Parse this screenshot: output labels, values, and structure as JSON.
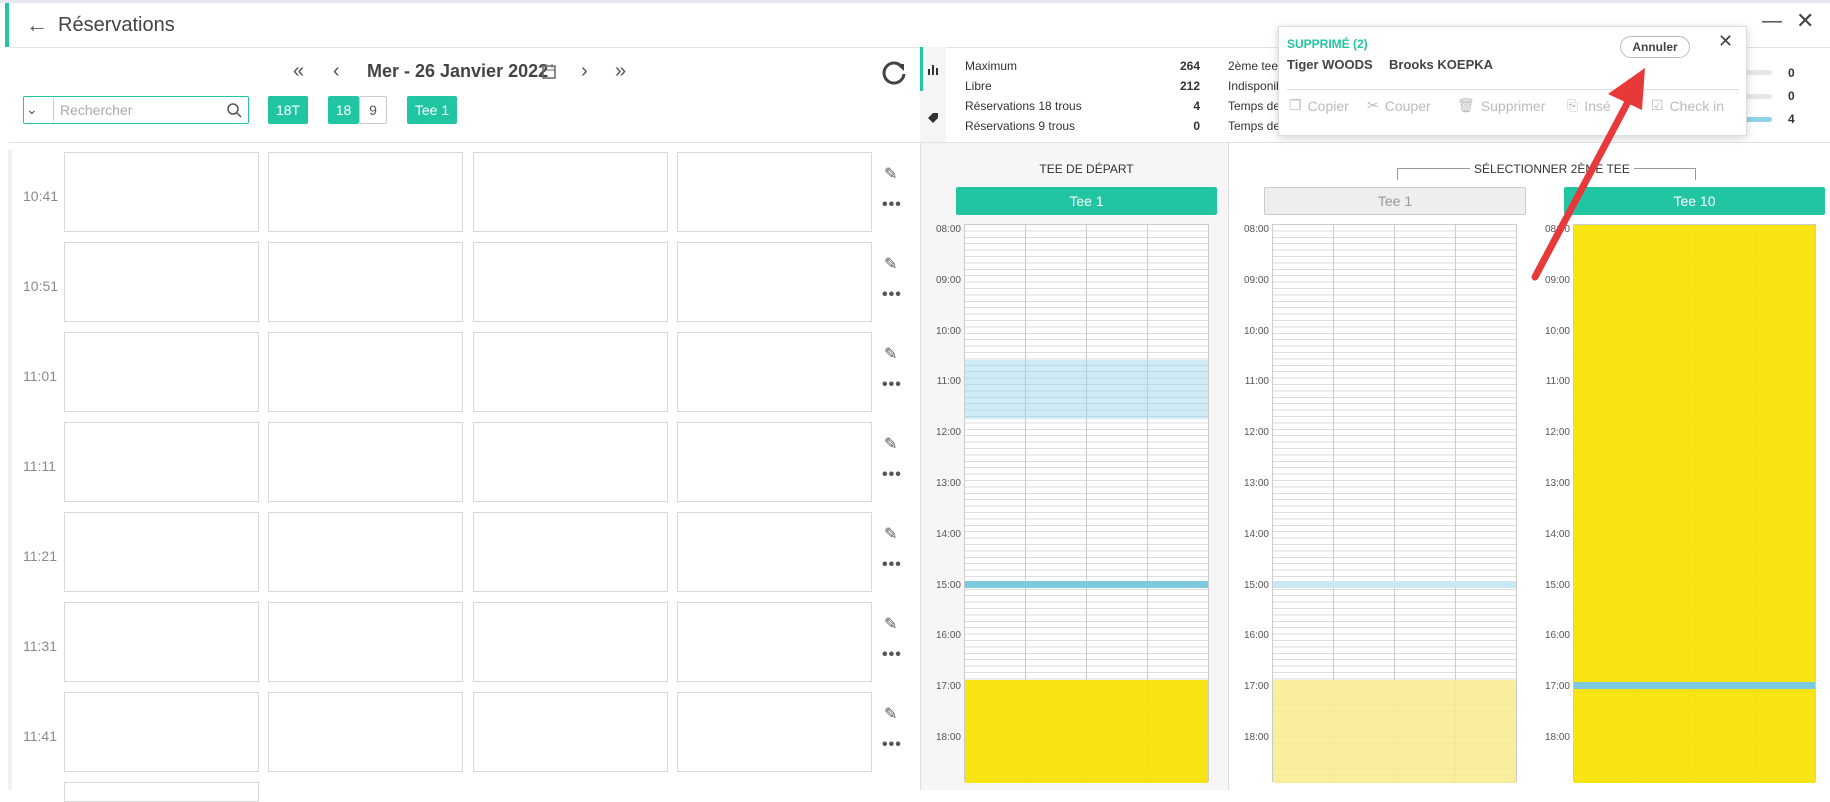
{
  "header": {
    "title": "Réservations"
  },
  "toolbar": {
    "date": "Mer - 26 Janvier 2022",
    "search_placeholder": "Rechercher",
    "filters": [
      "18T",
      "18",
      "9",
      "Tee 1"
    ]
  },
  "slots": {
    "times": [
      "10:41",
      "10:51",
      "11:01",
      "11:11",
      "11:21",
      "11:31",
      "11:41"
    ]
  },
  "stats": {
    "rows": [
      [
        "Maximum",
        264
      ],
      [
        "Libre",
        212
      ],
      [
        "Réservations 18 trous",
        4
      ],
      [
        "Réservations 9 trous",
        0
      ]
    ],
    "second_column": [
      "2ème tee",
      "Indisponib",
      "Temps de",
      "Temps de"
    ],
    "right_values": [
      0,
      0,
      4
    ]
  },
  "popup": {
    "title": "SUPPRIMÉ (2)",
    "cancel": "Annuler",
    "players": [
      "Tiger WOODS",
      "Brooks KOEPKA"
    ],
    "actions": [
      "Copier",
      "Couper",
      "Supprimer",
      "Insé",
      "Check in"
    ]
  },
  "tee_panels": {
    "start_label": "TEE DE DÉPART",
    "start_tee": "Tee 1",
    "second_label": "SÉLECTIONNER 2ÈME TEE",
    "second_tees": [
      "Tee 1",
      "Tee 10"
    ],
    "hours": [
      "08:00",
      "09:00",
      "10:00",
      "11:00",
      "12:00",
      "13:00",
      "14:00",
      "15:00",
      "16:00",
      "17:00",
      "18:00"
    ]
  }
}
